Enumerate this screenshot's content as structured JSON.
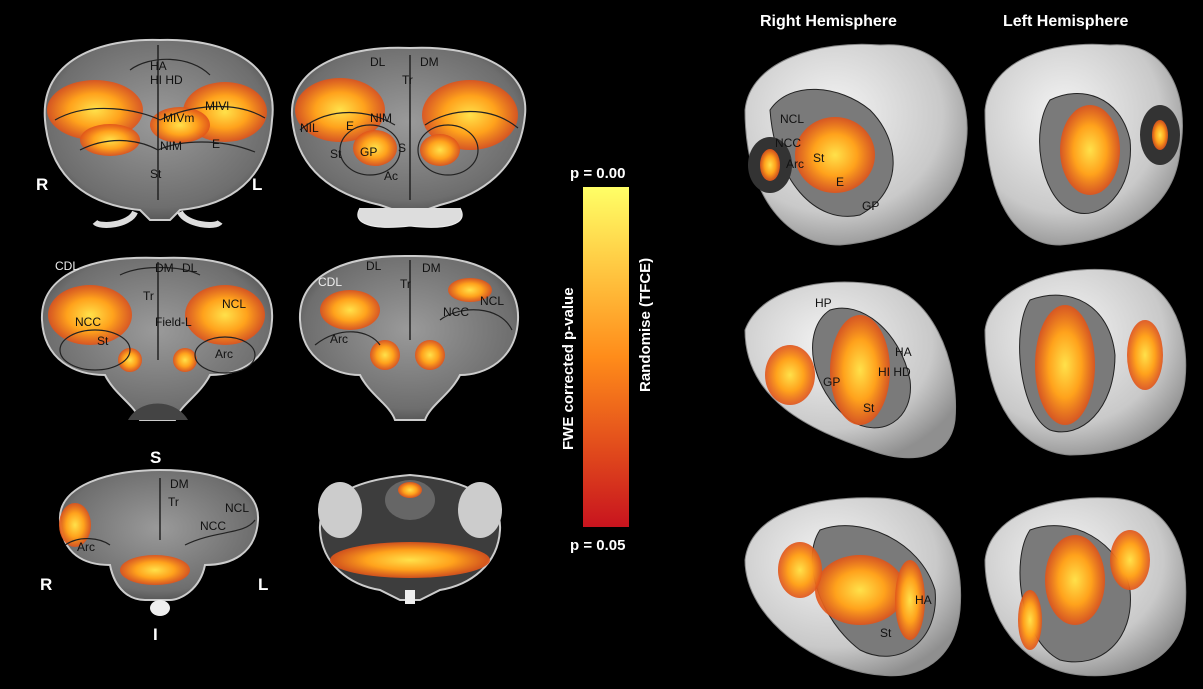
{
  "headers": {
    "right_hemisphere": "Right Hemisphere",
    "left_hemisphere": "Left Hemisphere"
  },
  "colorbar": {
    "top": "p = 0.00",
    "bottom": "p = 0.05",
    "label_left": "FWE corrected p-value",
    "label_right": "Randomise (TFCE)",
    "color_top": "#ffff66",
    "color_mid": "#ff8c1a",
    "color_bottom": "#c8141e"
  },
  "orientation": {
    "row1_right": "R",
    "row1_left": "L",
    "row3_right": "R",
    "row3_left": "L",
    "superior": "S",
    "inferior": "I"
  },
  "regions": {
    "c1": {
      "ha": "HA",
      "hi_hd": "HI HD",
      "mivm": "MIVm",
      "mivl": "MIVl",
      "nim": "NIM",
      "e": "E",
      "st": "St"
    },
    "c2": {
      "dl": "DL",
      "dm": "DM",
      "tr": "Tr",
      "nil": "NIL",
      "nim": "NIM",
      "e": "E",
      "st": "St",
      "gp": "GP",
      "s": "S",
      "ac": "Ac"
    },
    "c3": {
      "cdl": "CDL",
      "dm": "DM",
      "dl": "DL",
      "tr": "Tr",
      "ncl": "NCL",
      "ncc": "NCC",
      "field_l": "Field-L",
      "st": "St",
      "arc": "Arc"
    },
    "c4": {
      "cdl": "CDL",
      "dl": "DL",
      "dm": "DM",
      "tr": "Tr",
      "ncl": "NCL",
      "ncc": "NCC",
      "arc": "Arc"
    },
    "c5": {
      "dm": "DM",
      "tr": "Tr",
      "ncl": "NCL",
      "ncc": "NCC",
      "arc": "Arc"
    },
    "r1": {
      "ncl": "NCL",
      "ncc": "NCC",
      "arc": "Arc",
      "st": "St",
      "e": "E",
      "gp": "GP"
    },
    "r2": {
      "hp": "HP",
      "ha": "HA",
      "hi_hd": "HI HD",
      "gp": "GP",
      "st": "St"
    },
    "r3": {
      "ha": "HA",
      "st": "St"
    }
  }
}
